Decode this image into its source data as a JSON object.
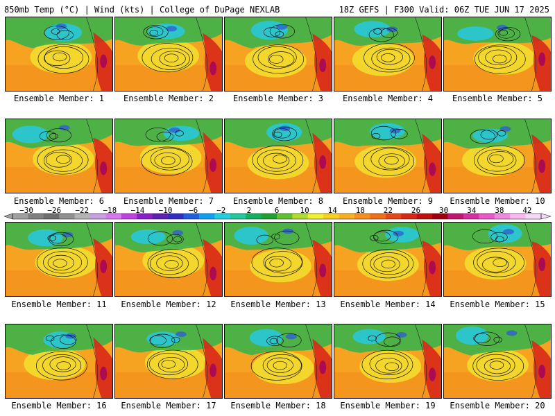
{
  "header": {
    "left": "850mb Temp (°C) | Wind (kts) | College of DuPage NEXLAB",
    "right": "18Z GEFS | F300 Valid: 06Z TUE JUN 17 2025"
  },
  "colorbar": {
    "labels": [
      "−30",
      "−26",
      "−22",
      "−18",
      "−14",
      "−10",
      "−6",
      "−2",
      "2",
      "6",
      "10",
      "14",
      "18",
      "22",
      "26",
      "30",
      "34",
      "38",
      "42"
    ],
    "colors": [
      "#a0a0a0",
      "#808080",
      "#6e6e6e",
      "#909090",
      "#b4b4b4",
      "#c8a0e0",
      "#d878f0",
      "#c040e0",
      "#8c20c8",
      "#6020b0",
      "#3030c0",
      "#2060e0",
      "#10a0f0",
      "#20d0e0",
      "#20c8a0",
      "#10b060",
      "#20a030",
      "#60c030",
      "#b0dc30",
      "#f0f030",
      "#f8d020",
      "#f8b020",
      "#f89020",
      "#f07018",
      "#e84818",
      "#d82818",
      "#c01010",
      "#a00010",
      "#c01870",
      "#d830a0",
      "#e858c8",
      "#f088e0",
      "#f8b8f0",
      "#f8d8f8"
    ]
  },
  "members": [
    {
      "label": "Ensemble Member: 1"
    },
    {
      "label": "Ensemble Member: 2"
    },
    {
      "label": "Ensemble Member: 3"
    },
    {
      "label": "Ensemble Member: 4"
    },
    {
      "label": "Ensemble Member: 5"
    },
    {
      "label": "Ensemble Member: 6"
    },
    {
      "label": "Ensemble Member: 7"
    },
    {
      "label": "Ensemble Member: 8"
    },
    {
      "label": "Ensemble Member: 9"
    },
    {
      "label": "Ensemble Member: 10"
    },
    {
      "label": "Ensemble Member: 11"
    },
    {
      "label": "Ensemble Member: 12"
    },
    {
      "label": "Ensemble Member: 13"
    },
    {
      "label": "Ensemble Member: 14"
    },
    {
      "label": "Ensemble Member: 15"
    },
    {
      "label": "Ensemble Member: 16"
    },
    {
      "label": "Ensemble Member: 17"
    },
    {
      "label": "Ensemble Member: 18"
    },
    {
      "label": "Ensemble Member: 19"
    },
    {
      "label": "Ensemble Member: 20"
    }
  ]
}
